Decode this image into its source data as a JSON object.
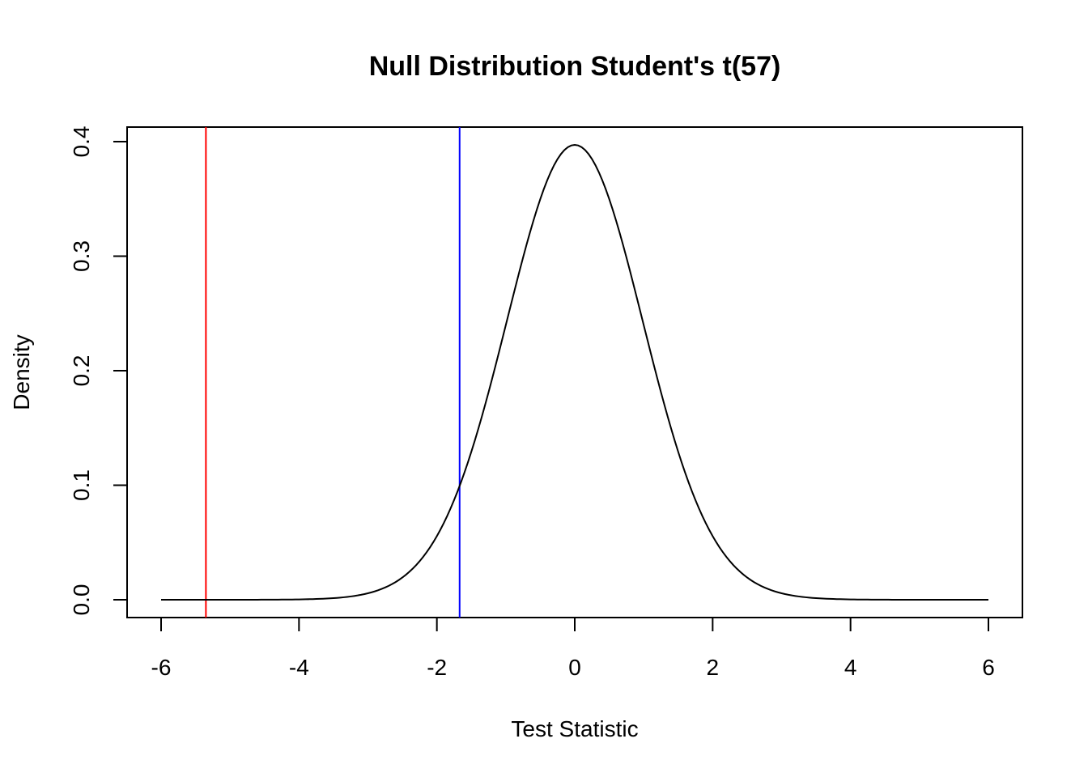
{
  "chart_data": {
    "type": "line",
    "title": "Null Distribution Student's t(57)",
    "xlabel": "Test Statistic",
    "ylabel": "Density",
    "distribution": {
      "name": "Student's t",
      "df": 57
    },
    "xlim": [
      -6,
      6
    ],
    "ylim": [
      0,
      0.4
    ],
    "x_ticks": [
      -6,
      -4,
      -2,
      0,
      2,
      4,
      6
    ],
    "x_tick_labels": [
      "-6",
      "-4",
      "-2",
      "0",
      "2",
      "4",
      "6"
    ],
    "y_ticks": [
      0,
      0.1,
      0.2,
      0.3,
      0.4
    ],
    "y_tick_labels": [
      "0.0",
      "0.1",
      "0.2",
      "0.3",
      "0.4"
    ],
    "grid": false,
    "series": [
      {
        "color": "#000000",
        "x": [
          -6,
          -5.5,
          -5,
          -4.5,
          -4,
          -3.5,
          -3,
          -2.5,
          -2,
          -1.75,
          -1.5,
          -1.25,
          -1,
          -0.75,
          -0.5,
          -0.25,
          0,
          0.25,
          0.5,
          0.75,
          1,
          1.25,
          1.5,
          1.75,
          2,
          2.5,
          3,
          3.5,
          4,
          4.5,
          5,
          5.5,
          6
        ],
        "y": [
          0.0,
          0.0,
          0.0,
          0.0,
          0.0003,
          0.0011,
          0.0049,
          0.0185,
          0.0546,
          0.0871,
          0.129,
          0.181,
          0.241,
          0.2987,
          0.3506,
          0.3857,
          0.3972,
          0.3857,
          0.3506,
          0.2987,
          0.241,
          0.181,
          0.129,
          0.0871,
          0.0546,
          0.0185,
          0.0049,
          0.0011,
          0.0003,
          0.0,
          0.0,
          0.0,
          0.0
        ]
      }
    ],
    "vlines": [
      {
        "x": -5.35,
        "color": "#ff0000"
      },
      {
        "x": -1.67,
        "color": "#0000ff"
      }
    ]
  }
}
